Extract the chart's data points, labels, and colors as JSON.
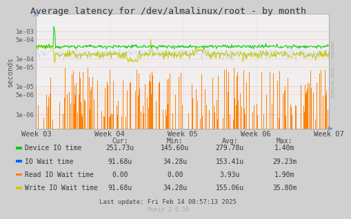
{
  "title": "Average latency for /dev/almalinux/root - by month",
  "ylabel": "seconds",
  "xtick_labels": [
    "Week 03",
    "Week 04",
    "Week 05",
    "Week 06",
    "Week 07"
  ],
  "background_color": "#d0d0d0",
  "plot_bg_color": "#f0f0f0",
  "legend_items": [
    {
      "label": "Device IO time",
      "color": "#00cc00"
    },
    {
      "label": "IO Wait time",
      "color": "#0066ff"
    },
    {
      "label": "Read IO Wait time",
      "color": "#ff7f00"
    },
    {
      "label": "Write IO Wait time",
      "color": "#cccc00"
    }
  ],
  "table_headers": [
    "",
    "Cur:",
    "Min:",
    "Avg:",
    "Max:"
  ],
  "table_rows": [
    [
      "Device IO time",
      "251.73u",
      "145.60u",
      "279.78u",
      "1.40m"
    ],
    [
      "IO Wait time",
      "91.68u",
      "34.28u",
      "153.41u",
      "29.23m"
    ],
    [
      "Read IO Wait time",
      "0.00",
      "0.00",
      "3.93u",
      "1.90m"
    ],
    [
      "Write IO Wait time",
      "91.68u",
      "34.28u",
      "155.06u",
      "35.80m"
    ]
  ],
  "last_update": "Last update: Fri Feb 14 08:57:13 2025",
  "munin_version": "Munin 2.0.56",
  "rrdtool_label": "RRDTOOL / TOBI OETIKER",
  "n_points": 500,
  "device_io_base": 0.00027,
  "write_io_base": 0.00014
}
